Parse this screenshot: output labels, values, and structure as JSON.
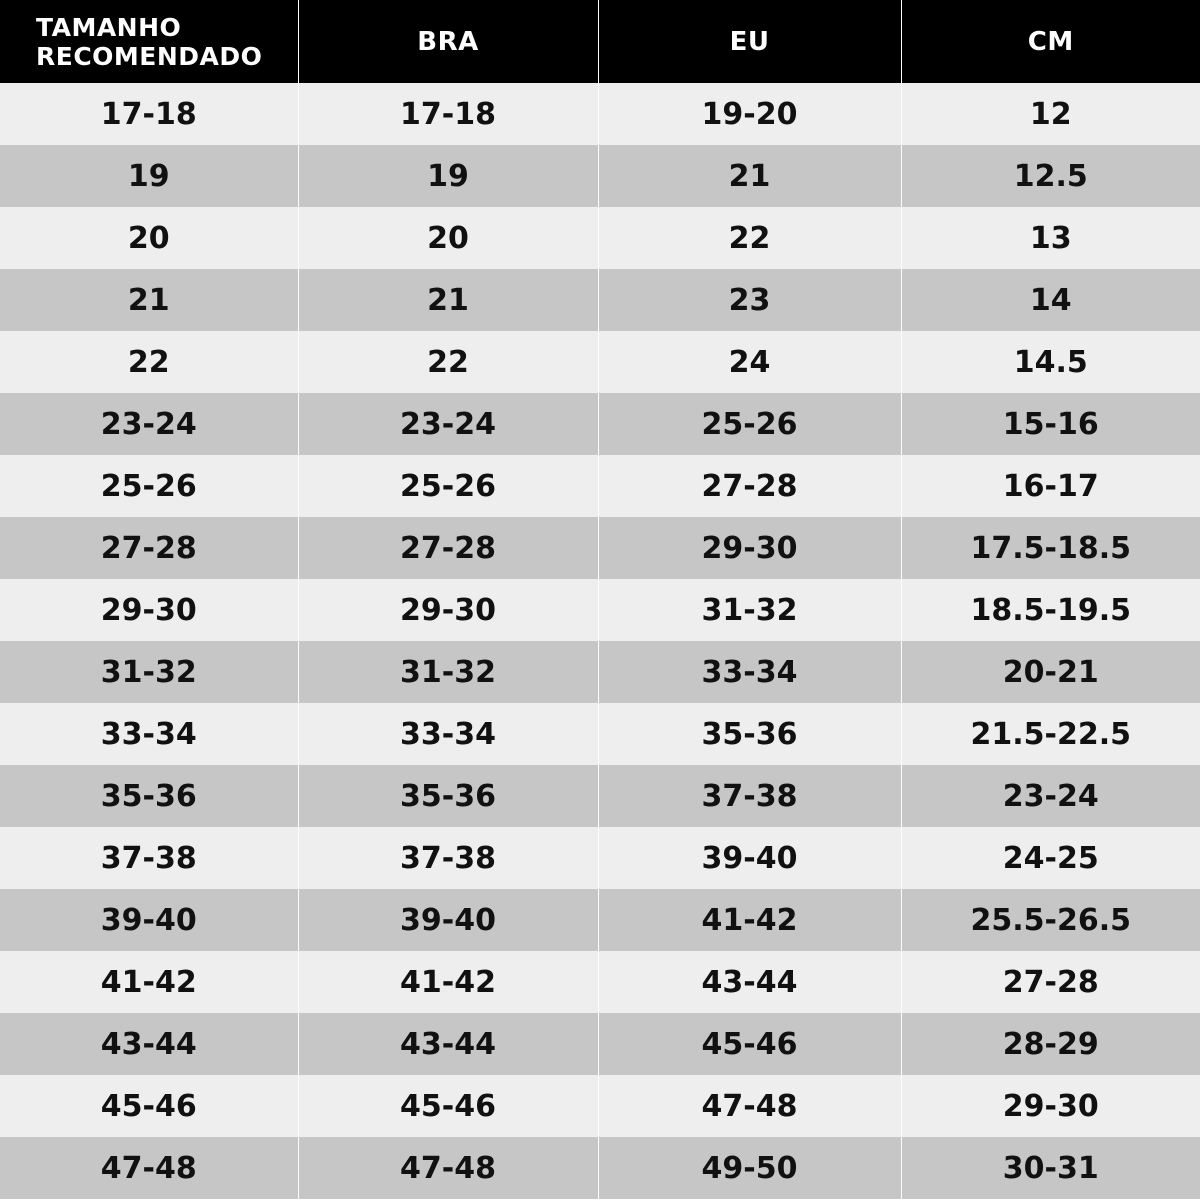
{
  "colors": {
    "header_bg": "#000000",
    "row_light": "#eeeeee",
    "row_dark": "#c6c6c6"
  },
  "headers": [
    "TAMANHO RECOMENDADO",
    "BRA",
    "EU",
    "CM"
  ],
  "rows": [
    [
      "17-18",
      "17-18",
      "19-20",
      "12"
    ],
    [
      "19",
      "19",
      "21",
      "12.5"
    ],
    [
      "20",
      "20",
      "22",
      "13"
    ],
    [
      "21",
      "21",
      "23",
      "14"
    ],
    [
      "22",
      "22",
      "24",
      "14.5"
    ],
    [
      "23-24",
      "23-24",
      "25-26",
      "15-16"
    ],
    [
      "25-26",
      "25-26",
      "27-28",
      "16-17"
    ],
    [
      "27-28",
      "27-28",
      "29-30",
      "17.5-18.5"
    ],
    [
      "29-30",
      "29-30",
      "31-32",
      "18.5-19.5"
    ],
    [
      "31-32",
      "31-32",
      "33-34",
      "20-21"
    ],
    [
      "33-34",
      "33-34",
      "35-36",
      "21.5-22.5"
    ],
    [
      "35-36",
      "35-36",
      "37-38",
      "23-24"
    ],
    [
      "37-38",
      "37-38",
      "39-40",
      "24-25"
    ],
    [
      "39-40",
      "39-40",
      "41-42",
      "25.5-26.5"
    ],
    [
      "41-42",
      "41-42",
      "43-44",
      "27-28"
    ],
    [
      "43-44",
      "43-44",
      "45-46",
      "28-29"
    ],
    [
      "45-46",
      "45-46",
      "47-48",
      "29-30"
    ],
    [
      "47-48",
      "47-48",
      "49-50",
      "30-31"
    ]
  ]
}
